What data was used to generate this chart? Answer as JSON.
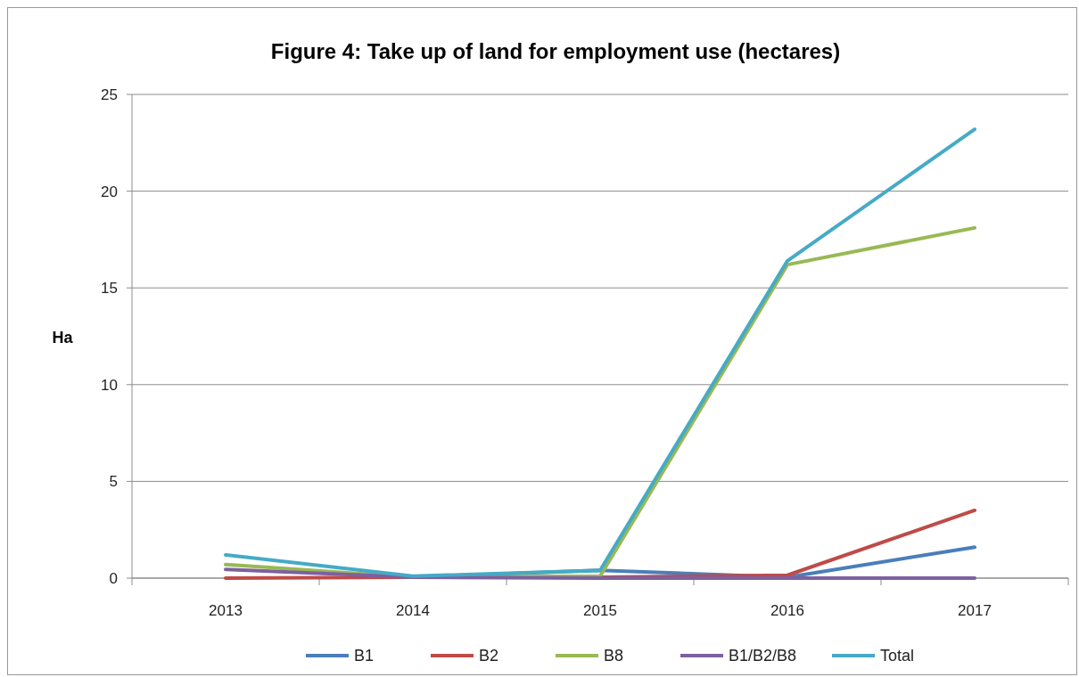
{
  "chart_data": {
    "type": "line",
    "title": "Figure 4:  Take up of land for employment  use (hectares)",
    "ylabel": "Ha",
    "categories": [
      "2013",
      "2014",
      "2015",
      "2016",
      "2017"
    ],
    "ylim": [
      0,
      25
    ],
    "yticks": [
      0,
      5,
      10,
      15,
      20,
      25
    ],
    "grid": "y",
    "legend": "bottom",
    "series": [
      {
        "name": "B1",
        "color": "#4a7ebb",
        "values": [
          null,
          0.05,
          0.4,
          0.05,
          1.6
        ]
      },
      {
        "name": "B2",
        "color": "#be4b48",
        "values": [
          0,
          0.05,
          0.05,
          0.15,
          3.5
        ]
      },
      {
        "name": "B8",
        "color": "#98b954",
        "values": [
          0.7,
          0.05,
          0.1,
          16.2,
          18.1
        ]
      },
      {
        "name": "B1/B2/B8",
        "color": "#7d60a0",
        "values": [
          0.45,
          0.05,
          0,
          0,
          0
        ]
      },
      {
        "name": "Total",
        "color": "#46aac5",
        "values": [
          1.2,
          0.1,
          0.4,
          16.4,
          23.2
        ]
      }
    ]
  }
}
